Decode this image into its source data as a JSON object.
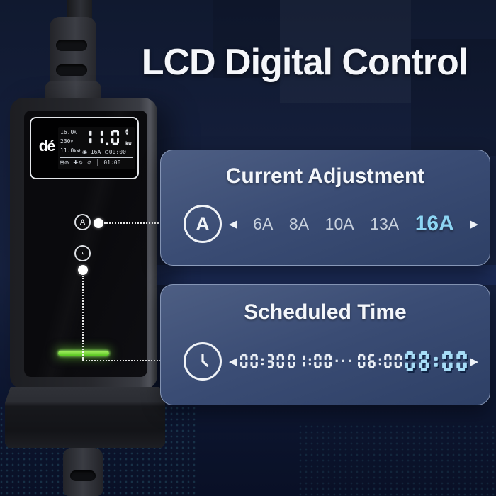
{
  "page": {
    "title": "LCD Digital Control"
  },
  "device": {
    "brand": "dé",
    "lcd": {
      "current": "16.0",
      "current_unit": "A",
      "voltage": "230",
      "voltage_unit": "V",
      "energy": "11.0",
      "energy_unit": "kWh",
      "power": "11.0",
      "power_unit": "kW",
      "up_icon": "▲",
      "down_icon": "▼",
      "amp_icon": "◉",
      "amp_set": "16A",
      "timer_icon": "⊙",
      "timer_set": "00:00",
      "status_icons": [
        {
          "name": "vehicle-status-icon",
          "glyph": "⊟⊚"
        },
        {
          "name": "plug-status-icon",
          "glyph": "✚⊚"
        },
        {
          "name": "charge-status-icon",
          "glyph": "⊚"
        }
      ],
      "status_divider": "│",
      "status_time": "01:00"
    },
    "buttons": {
      "current_label": "A"
    }
  },
  "panels": {
    "current": {
      "title": "Current Adjustment",
      "icon_label": "A",
      "prev_arrow": "◀",
      "next_arrow": "▶",
      "options": [
        {
          "value": "6A",
          "active": false
        },
        {
          "value": "8A",
          "active": false
        },
        {
          "value": "10A",
          "active": false
        },
        {
          "value": "13A",
          "active": false
        },
        {
          "value": "16A",
          "active": true
        }
      ]
    },
    "schedule": {
      "title": "Scheduled Time",
      "prev_arrow": "◀",
      "next_arrow": "▶",
      "options": [
        {
          "value": "00:30",
          "active": false
        },
        {
          "value": "···",
          "active": false,
          "separator": true
        },
        {
          "value": "01:00",
          "active": false,
          "order_note": ""
        },
        {
          "value": "06:00",
          "active": false
        },
        {
          "value": "08:00",
          "active": true
        }
      ],
      "display_order": [
        "00:30",
        "01:00",
        "···",
        "06:00",
        "08:00"
      ]
    }
  },
  "colors": {
    "accent_blue": "#8dd5f3",
    "segment_blue": "#a6dcf6",
    "segment_white": "#e9eef5",
    "led_green": "#71dd35",
    "panel_top": "#4d5e83",
    "panel_bottom": "#2e4066",
    "background": "#10192f"
  }
}
